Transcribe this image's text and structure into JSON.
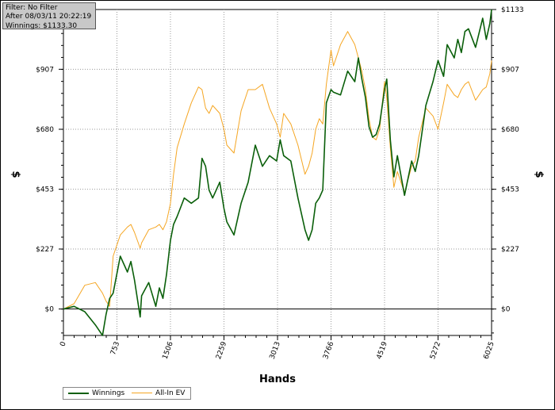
{
  "info": {
    "filter": "Filter: No Filter",
    "after": "After 08/03/11 20:22:19",
    "winnings": "Winnings: $1133.30"
  },
  "colors": {
    "winnings": "#0a5f0a",
    "allin_ev": "#f5a623",
    "grid": "#9a9a9a",
    "zero_line": "#000000"
  },
  "chart_data": {
    "type": "line",
    "xlabel": "Hands",
    "ylabel": "$",
    "xlim": [
      0,
      6025
    ],
    "ylim": [
      -100,
      1133
    ],
    "x_ticks": [
      "0",
      "753",
      "1506",
      "2259",
      "3013",
      "3766",
      "4519",
      "5272",
      "6025"
    ],
    "y_ticks_left": [
      "$0",
      "$227",
      "$453",
      "$680",
      "$907"
    ],
    "y_ticks_right": [
      "$0",
      "$227",
      "$453",
      "$680",
      "$907",
      "$1133"
    ],
    "grid": true,
    "legend_position": "bottom-left",
    "series": [
      {
        "name": "Winnings",
        "x": [
          0,
          150,
          300,
          450,
          550,
          600,
          650,
          700,
          800,
          900,
          950,
          1000,
          1080,
          1100,
          1200,
          1300,
          1350,
          1400,
          1450,
          1506,
          1550,
          1600,
          1700,
          1800,
          1900,
          1950,
          2000,
          2050,
          2100,
          2200,
          2259,
          2300,
          2400,
          2500,
          2600,
          2700,
          2800,
          2900,
          3000,
          3050,
          3100,
          3200,
          3300,
          3400,
          3450,
          3500,
          3550,
          3600,
          3650,
          3700,
          3766,
          3800,
          3900,
          4000,
          4100,
          4150,
          4200,
          4250,
          4300,
          4350,
          4400,
          4450,
          4519,
          4550,
          4600,
          4650,
          4700,
          4800,
          4900,
          4950,
          5000,
          5100,
          5200,
          5272,
          5350,
          5400,
          5500,
          5550,
          5600,
          5650,
          5700,
          5800,
          5900,
          5950,
          6000,
          6025
        ],
        "values": [
          0,
          10,
          -10,
          -60,
          -100,
          -20,
          40,
          60,
          200,
          140,
          180,
          110,
          -30,
          50,
          100,
          10,
          80,
          40,
          130,
          260,
          320,
          350,
          420,
          400,
          420,
          570,
          540,
          450,
          420,
          480,
          380,
          330,
          280,
          400,
          480,
          620,
          540,
          580,
          560,
          640,
          580,
          560,
          420,
          300,
          260,
          300,
          400,
          420,
          450,
          780,
          830,
          820,
          810,
          900,
          860,
          950,
          870,
          800,
          690,
          650,
          660,
          700,
          830,
          870,
          640,
          500,
          580,
          430,
          560,
          520,
          580,
          770,
          860,
          940,
          880,
          1000,
          950,
          1020,
          970,
          1050,
          1060,
          990,
          1100,
          1020,
          1080,
          1133
        ]
      },
      {
        "name": "All-In EV",
        "x": [
          0,
          150,
          300,
          450,
          550,
          600,
          650,
          700,
          800,
          900,
          950,
          1000,
          1080,
          1100,
          1200,
          1300,
          1350,
          1400,
          1450,
          1506,
          1550,
          1600,
          1700,
          1800,
          1900,
          1950,
          2000,
          2050,
          2100,
          2200,
          2259,
          2300,
          2400,
          2500,
          2600,
          2700,
          2800,
          2900,
          3000,
          3050,
          3100,
          3200,
          3300,
          3400,
          3450,
          3500,
          3550,
          3600,
          3650,
          3700,
          3766,
          3800,
          3900,
          4000,
          4100,
          4150,
          4200,
          4250,
          4300,
          4350,
          4400,
          4450,
          4519,
          4550,
          4600,
          4650,
          4700,
          4800,
          4900,
          4950,
          5000,
          5100,
          5200,
          5272,
          5350,
          5400,
          5500,
          5550,
          5600,
          5650,
          5700,
          5800,
          5900,
          5950,
          6000,
          6025
        ],
        "values": [
          0,
          20,
          90,
          100,
          60,
          30,
          10,
          200,
          280,
          310,
          320,
          290,
          230,
          250,
          300,
          310,
          320,
          300,
          330,
          400,
          510,
          610,
          700,
          780,
          840,
          830,
          760,
          740,
          770,
          740,
          680,
          620,
          590,
          750,
          830,
          830,
          850,
          760,
          700,
          650,
          740,
          700,
          620,
          510,
          540,
          590,
          680,
          720,
          700,
          850,
          980,
          920,
          1000,
          1050,
          1000,
          950,
          900,
          830,
          720,
          650,
          640,
          680,
          860,
          800,
          610,
          460,
          520,
          440,
          540,
          560,
          650,
          760,
          730,
          680,
          780,
          850,
          810,
          800,
          830,
          850,
          860,
          790,
          830,
          840,
          890,
          940
        ]
      }
    ]
  },
  "legend": {
    "winnings": "Winnings",
    "allin_ev": "All-In EV"
  }
}
